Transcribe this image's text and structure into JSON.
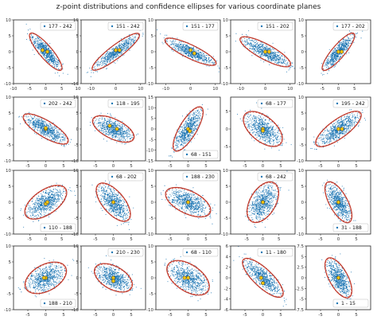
{
  "title": "z-point distributions and confidence ellipses for various coordinate planes",
  "colors": {
    "points": "#1f77b4",
    "ellipse": "#c0392b",
    "marker": "#f1c40f",
    "marker_edge": "#333333"
  },
  "chart_data": [
    {
      "type": "scatter",
      "label": "177 - 242",
      "legend": "top-right",
      "xlim": [
        -10,
        10
      ],
      "ylim": [
        -10,
        10
      ],
      "xticks": [
        -10,
        -5,
        0,
        5,
        10
      ],
      "yticks": [
        -10,
        -5,
        0,
        5,
        10
      ],
      "angle": -50,
      "major": 7.5,
      "minor": 2.0,
      "centers": [
        [
          -1,
          0.5
        ],
        [
          0.5,
          0
        ]
      ]
    },
    {
      "type": "scatter",
      "label": "151 - 242",
      "legend": "top-right",
      "xlim": [
        -14,
        12
      ],
      "ylim": [
        -10,
        10
      ],
      "xticks": [
        -10,
        0,
        10
      ],
      "yticks": [
        -10,
        -5,
        0,
        5,
        10
      ],
      "angle": 30,
      "major": 11,
      "minor": 2.2,
      "centers": [
        [
          0,
          0.5
        ],
        [
          1.5,
          0.5
        ]
      ]
    },
    {
      "type": "scatter",
      "label": "151 - 177",
      "legend": "top-right",
      "xlim": [
        -14,
        12
      ],
      "ylim": [
        -10,
        10
      ],
      "xticks": [
        -10,
        0,
        10
      ],
      "yticks": [
        -10,
        -5,
        0,
        5,
        10
      ],
      "angle": -20,
      "major": 11,
      "minor": 2.2,
      "centers": [
        [
          0,
          0.5
        ],
        [
          1.5,
          -0.5
        ]
      ]
    },
    {
      "type": "scatter",
      "label": "151 - 202",
      "legend": "top-right",
      "xlim": [
        -14,
        12
      ],
      "ylim": [
        -10,
        10
      ],
      "xticks": [
        -10,
        0,
        10
      ],
      "yticks": [
        -10,
        -5,
        0,
        5,
        10
      ],
      "angle": -22,
      "major": 11,
      "minor": 2.5,
      "centers": [
        [
          0,
          0
        ],
        [
          1.5,
          0
        ]
      ]
    },
    {
      "type": "scatter",
      "label": "177 - 202",
      "legend": "top-right",
      "xlim": [
        -10,
        10
      ],
      "ylim": [
        -10,
        10
      ],
      "xticks": [
        -5,
        0,
        5
      ],
      "yticks": [
        -10,
        -5,
        0,
        5,
        10
      ],
      "angle": 50,
      "major": 7.5,
      "minor": 2.0,
      "centers": [
        [
          0,
          0
        ],
        [
          1,
          0
        ]
      ]
    },
    {
      "type": "scatter",
      "label": "202 - 242",
      "legend": "top-right",
      "xlim": [
        -9,
        9
      ],
      "ylim": [
        -10,
        10
      ],
      "xticks": [
        -5,
        0,
        5
      ],
      "yticks": [
        -10,
        -5,
        0,
        5,
        10
      ],
      "angle": -35,
      "major": 7.5,
      "minor": 2.5,
      "centers": [
        [
          0,
          0
        ],
        [
          0,
          0.3
        ]
      ]
    },
    {
      "type": "scatter",
      "label": "118 - 195",
      "legend": "top-right",
      "xlim": [
        -9,
        9
      ],
      "ylim": [
        -10,
        10
      ],
      "xticks": [
        -5,
        0,
        5
      ],
      "yticks": [
        -10,
        -5,
        0,
        5,
        10
      ],
      "angle": -30,
      "major": 6.5,
      "minor": 3.0,
      "centers": [
        [
          -1,
          1
        ],
        [
          1,
          0
        ]
      ]
    },
    {
      "type": "scatter",
      "label": "68 - 151",
      "legend": "bottom-right",
      "xlim": [
        -9,
        9
      ],
      "ylim": [
        -15,
        15
      ],
      "xticks": [
        -5,
        0,
        5
      ],
      "yticks": [
        -15,
        -10,
        -5,
        0,
        5,
        10,
        15
      ],
      "angle": 72,
      "major": 11,
      "minor": 2.6,
      "centers": [
        [
          0,
          0
        ],
        [
          0.5,
          -1
        ]
      ]
    },
    {
      "type": "scatter",
      "label": "68 - 177",
      "legend": "top-right",
      "xlim": [
        -9,
        9
      ],
      "ylim": [
        -9,
        9
      ],
      "xticks": [
        -5,
        0,
        5
      ],
      "yticks": [
        -5,
        0,
        5
      ],
      "angle": -40,
      "major": 6.5,
      "minor": 3.5,
      "centers": [
        [
          0,
          0
        ],
        [
          0,
          -0.5
        ]
      ]
    },
    {
      "type": "scatter",
      "label": "195 - 242",
      "legend": "top-right",
      "xlim": [
        -9,
        9
      ],
      "ylim": [
        -10,
        10
      ],
      "xticks": [
        -5,
        0,
        5
      ],
      "yticks": [
        -10,
        -5,
        0,
        5,
        10
      ],
      "angle": 40,
      "major": 8,
      "minor": 2.8,
      "centers": [
        [
          0,
          0
        ],
        [
          1,
          0
        ]
      ]
    },
    {
      "type": "scatter",
      "label": "110 - 188",
      "legend": "bottom-right",
      "xlim": [
        -10,
        10
      ],
      "ylim": [
        -10,
        10
      ],
      "xticks": [
        -5,
        0,
        5
      ],
      "yticks": [
        -10,
        -5,
        0,
        5,
        10
      ],
      "angle": 35,
      "major": 7.5,
      "minor": 3.8,
      "centers": [
        [
          0,
          -0.5
        ],
        [
          0.5,
          0
        ]
      ]
    },
    {
      "type": "scatter",
      "label": "68 - 202",
      "legend": "top-right",
      "xlim": [
        -9,
        9
      ],
      "ylim": [
        -10,
        10
      ],
      "xticks": [
        -5,
        0,
        5
      ],
      "yticks": [
        -10,
        -5,
        0,
        5,
        10
      ],
      "angle": -55,
      "major": 7,
      "minor": 3.2,
      "centers": [
        [
          0,
          0
        ],
        [
          0,
          0
        ]
      ]
    },
    {
      "type": "scatter",
      "label": "188 - 230",
      "legend": "top-right",
      "xlim": [
        -9,
        9
      ],
      "ylim": [
        -10,
        10
      ],
      "xticks": [
        -5,
        0,
        5
      ],
      "yticks": [
        -10,
        -5,
        0,
        5,
        10
      ],
      "angle": -30,
      "major": 7,
      "minor": 3.5,
      "centers": [
        [
          0,
          0
        ],
        [
          0,
          0
        ]
      ]
    },
    {
      "type": "scatter",
      "label": "68 - 242",
      "legend": "top-right",
      "xlim": [
        -10,
        10
      ],
      "ylim": [
        -10,
        10
      ],
      "xticks": [
        -5,
        0,
        5
      ],
      "yticks": [
        -10,
        -5,
        0,
        5,
        10
      ],
      "angle": 60,
      "major": 7,
      "minor": 4.0,
      "centers": [
        [
          0,
          0
        ],
        [
          0,
          0
        ]
      ]
    },
    {
      "type": "scatter",
      "label": "31 - 188",
      "legend": "bottom-right",
      "xlim": [
        -9,
        9
      ],
      "ylim": [
        -10,
        10
      ],
      "xticks": [
        -5,
        0,
        5
      ],
      "yticks": [
        -10,
        -5,
        0,
        5,
        10
      ],
      "angle": -65,
      "major": 7,
      "minor": 2.6,
      "centers": [
        [
          0,
          0
        ],
        [
          0,
          0
        ]
      ]
    },
    {
      "type": "scatter",
      "label": "188 - 210",
      "legend": "bottom-right",
      "xlim": [
        -9,
        9
      ],
      "ylim": [
        -10,
        10
      ],
      "xticks": [
        -5,
        0,
        5
      ],
      "yticks": [
        -10,
        -5,
        0,
        5,
        10
      ],
      "angle": 35,
      "major": 6.5,
      "minor": 4.0,
      "centers": [
        [
          0,
          0
        ],
        [
          -0.5,
          0
        ]
      ]
    },
    {
      "type": "scatter",
      "label": "210 - 230",
      "legend": "top-right",
      "xlim": [
        -9,
        9
      ],
      "ylim": [
        -10,
        10
      ],
      "xticks": [
        -5,
        0,
        5
      ],
      "yticks": [
        -10,
        -5,
        0,
        5,
        10
      ],
      "angle": -35,
      "major": 6,
      "minor": 3.5,
      "centers": [
        [
          0,
          0
        ],
        [
          0,
          -1
        ]
      ]
    },
    {
      "type": "scatter",
      "label": "68 - 110",
      "legend": "top-right",
      "xlim": [
        -9,
        9
      ],
      "ylim": [
        -10,
        10
      ],
      "xticks": [
        -5,
        0,
        5
      ],
      "yticks": [
        -10,
        -5,
        0,
        5,
        10
      ],
      "angle": -40,
      "major": 7,
      "minor": 4.0,
      "centers": [
        [
          -1,
          0
        ],
        [
          0,
          0
        ]
      ]
    },
    {
      "type": "scatter",
      "label": "11 - 180",
      "legend": "top-right",
      "xlim": [
        -9,
        9
      ],
      "ylim": [
        -6,
        6
      ],
      "xticks": [
        -5,
        0,
        5
      ],
      "yticks": [
        -6,
        -4,
        -2,
        0,
        2,
        4,
        6
      ],
      "angle": -30,
      "major": 6.5,
      "minor": 2.0,
      "centers": [
        [
          -0.5,
          0
        ],
        [
          0,
          -1
        ]
      ]
    },
    {
      "type": "scatter",
      "label": "1 - 15",
      "legend": "bottom-right",
      "xlim": [
        -9,
        9
      ],
      "ylim": [
        -7.5,
        7.5
      ],
      "xticks": [
        -5,
        0,
        5
      ],
      "yticks": [
        -7.5,
        -5,
        -2.5,
        0,
        2.5,
        5,
        7.5
      ],
      "angle": -55,
      "major": 5.5,
      "minor": 2.5,
      "centers": [
        [
          0,
          0
        ],
        [
          0,
          0
        ]
      ]
    }
  ]
}
